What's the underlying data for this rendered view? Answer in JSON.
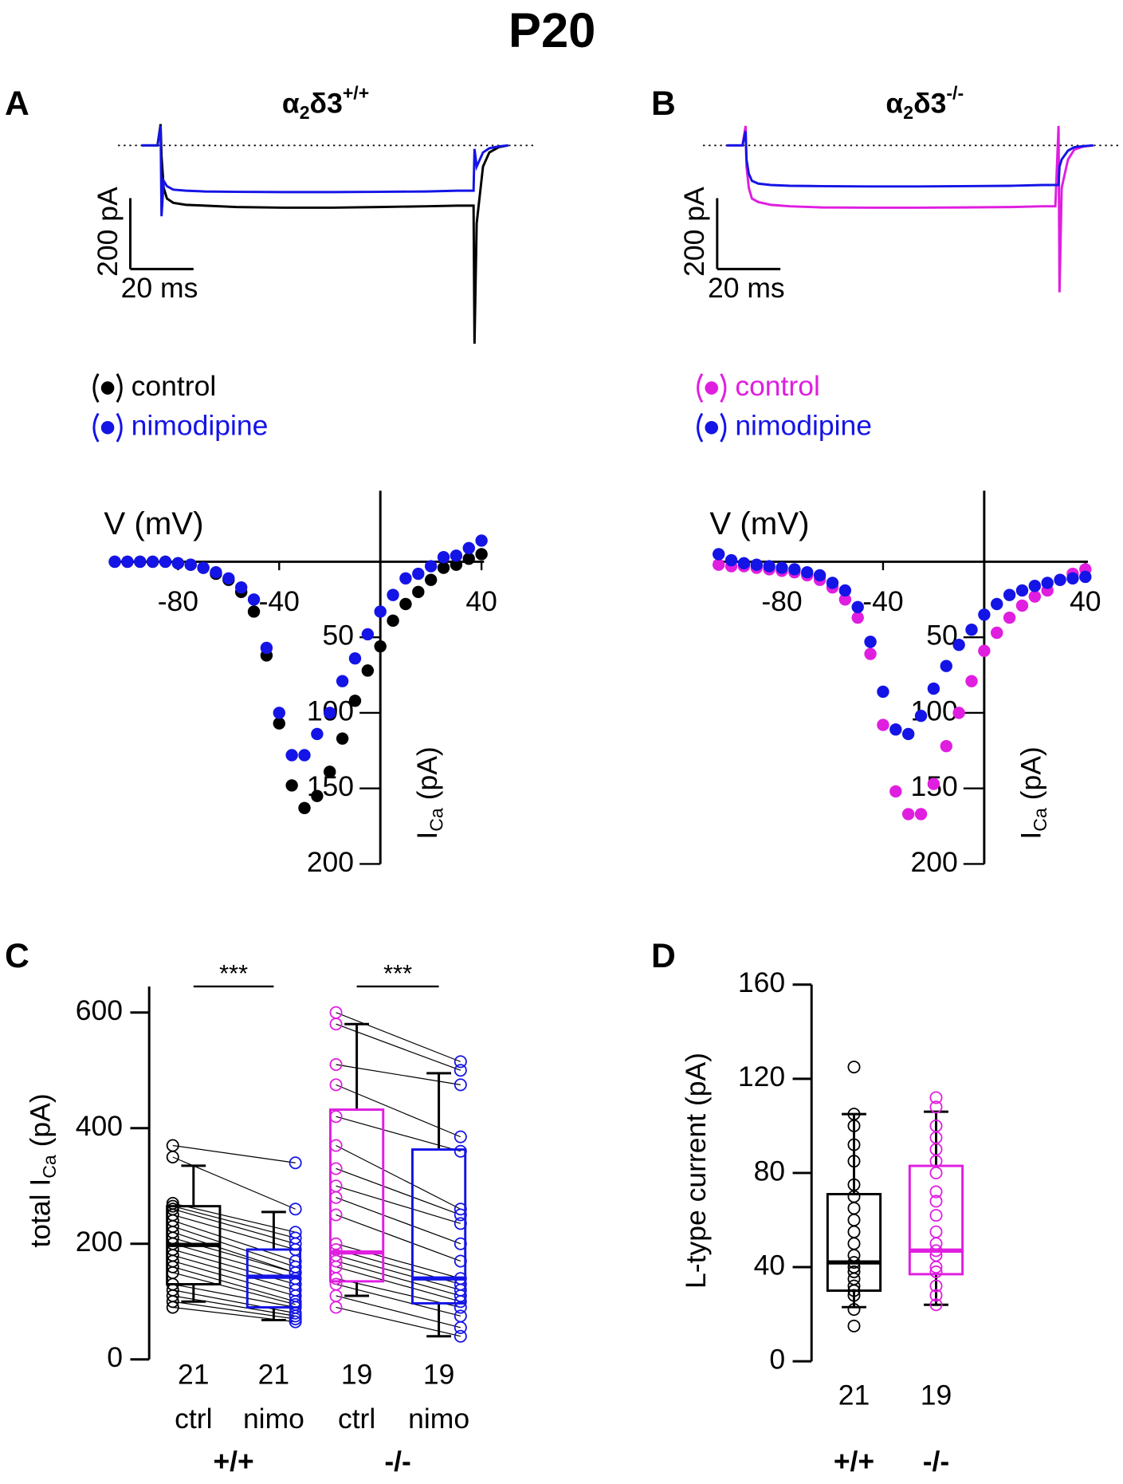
{
  "title": "P20",
  "chart_data": [
    {
      "type": "line",
      "panel": "A",
      "title": [
        "α",
        "2",
        "δ3",
        "+/+"
      ],
      "x": [
        0,
        5,
        6,
        6.3,
        7,
        8,
        10,
        14,
        20,
        30,
        45,
        60,
        75,
        90,
        100,
        104,
        105,
        105.3,
        106,
        108,
        110,
        113,
        116
      ],
      "series": [
        {
          "color": "#000000",
          "values": [
            0,
            0,
            60,
            -30,
            -120,
            -150,
            -162,
            -168,
            -170,
            -174,
            -176,
            -176,
            -174,
            -172,
            -170,
            -170,
            -170,
            -560,
            -220,
            -60,
            -20,
            -5,
            0
          ]
        },
        {
          "color": "#1414e6",
          "values": [
            0,
            0,
            55,
            -200,
            -100,
            -115,
            -125,
            -128,
            -130,
            -131,
            -132,
            -132,
            -131,
            -130,
            -128,
            -128,
            -128,
            -10,
            -60,
            -20,
            -8,
            -3,
            0
          ]
        }
      ],
      "xlim": [
        0,
        116
      ],
      "ylim": [
        -565,
        60
      ],
      "scalebar": {
        "x": {
          "value": 20,
          "label": "20 ms"
        },
        "y": {
          "value": 200,
          "label": "200 pA"
        }
      }
    },
    {
      "type": "line",
      "panel": "B",
      "title": [
        "α",
        "2",
        "δ3",
        "-/-"
      ],
      "x": [
        0,
        5,
        6,
        6.3,
        7,
        8,
        10,
        14,
        20,
        30,
        45,
        60,
        75,
        90,
        100,
        104,
        105,
        105.3,
        106,
        108,
        110,
        113,
        116
      ],
      "series": [
        {
          "color": "#e01ee0",
          "values": [
            0,
            0,
            55,
            -60,
            -120,
            -150,
            -160,
            -168,
            -172,
            -175,
            -176,
            -176,
            -175,
            -174,
            -172,
            -172,
            55,
            -415,
            -120,
            -40,
            -12,
            -3,
            0
          ]
        },
        {
          "color": "#1414e6",
          "values": [
            0,
            0,
            40,
            -40,
            -80,
            -100,
            -108,
            -112,
            -114,
            -115,
            -116,
            -116,
            -115,
            -114,
            -112,
            -112,
            -112,
            -60,
            -40,
            -15,
            -5,
            -2,
            0
          ]
        }
      ],
      "xlim": [
        0,
        116
      ],
      "ylim": [
        -565,
        60
      ],
      "scalebar": {
        "x": {
          "value": 20,
          "label": "20 ms"
        },
        "y": {
          "value": 200,
          "label": "200 pA"
        }
      }
    },
    {
      "type": "scatter",
      "xlabel": "V (mV)",
      "ylabel": [
        "I",
        "Ca",
        " (pA)"
      ],
      "x": [
        -105,
        -100,
        -95,
        -90,
        -85,
        -80,
        -75,
        -70,
        -65,
        -60,
        -55,
        -50,
        -45,
        -40,
        -35,
        -30,
        -25,
        -20,
        -15,
        -10,
        -5,
        0,
        5,
        10,
        15,
        20,
        25,
        30,
        35,
        40
      ],
      "series": [
        {
          "name": "control",
          "color": "#000000",
          "values": [
            0,
            0,
            0,
            0,
            0,
            1,
            2,
            4,
            8,
            12,
            20,
            33,
            62,
            107,
            148,
            163,
            155,
            139,
            117,
            92,
            72,
            56,
            39,
            28,
            20,
            12,
            4,
            2,
            -2,
            -5
          ]
        },
        {
          "name": "nimodipine",
          "color": "#1414e6",
          "values": [
            0,
            0,
            0,
            0,
            0,
            1,
            2,
            4,
            7,
            11,
            17,
            25,
            57,
            100,
            128,
            128,
            114,
            100,
            79,
            64,
            48,
            33,
            22,
            11,
            8,
            3,
            -3,
            -4,
            -9,
            -14
          ]
        }
      ],
      "xlim": [
        -107,
        41
      ],
      "ylim": [
        -47,
        200
      ],
      "invert_y": true,
      "xticks": [
        -80,
        -40,
        40
      ],
      "yticks": [
        50,
        100,
        150,
        200
      ]
    },
    {
      "type": "scatter",
      "xlabel": "V (mV)",
      "ylabel": [
        "I",
        "Ca",
        " (pA)"
      ],
      "x": [
        -105,
        -100,
        -95,
        -90,
        -85,
        -80,
        -75,
        -70,
        -65,
        -60,
        -55,
        -50,
        -45,
        -40,
        -35,
        -30,
        -25,
        -20,
        -15,
        -10,
        -5,
        0,
        5,
        10,
        15,
        20,
        25,
        30,
        35,
        40
      ],
      "series": [
        {
          "name": "control",
          "color": "#e01ee0",
          "values": [
            2,
            3,
            3,
            4,
            5,
            6,
            7,
            9,
            12,
            17,
            25,
            37,
            61,
            108,
            152,
            167,
            167,
            147,
            122,
            100,
            79,
            59,
            47,
            37,
            29,
            23,
            19,
            12,
            8,
            5
          ]
        },
        {
          "name": "nimodipine",
          "color": "#1414e6",
          "values": [
            -5,
            -1,
            1,
            2,
            3,
            4,
            5,
            7,
            9,
            14,
            19,
            30,
            53,
            86,
            111,
            114,
            102,
            84,
            69,
            55,
            45,
            35,
            28,
            22,
            19,
            16,
            14,
            12,
            11,
            10
          ]
        }
      ],
      "xlim": [
        -107,
        41
      ],
      "ylim": [
        -47,
        200
      ],
      "invert_y": true,
      "xticks": [
        -80,
        -40,
        40
      ],
      "yticks": [
        50,
        100,
        150,
        200
      ]
    },
    {
      "type": "box",
      "panel": "C",
      "ylabel": [
        "total I",
        "Ca",
        " (pA)"
      ],
      "ylim": [
        0,
        645
      ],
      "yticks": [
        0,
        200,
        400,
        600
      ],
      "groups": [
        {
          "n": 21,
          "label": "ctrl",
          "color": "#000000",
          "points": [
            370,
            350,
            270,
            265,
            260,
            250,
            240,
            230,
            220,
            210,
            200,
            190,
            180,
            170,
            160,
            150,
            130,
            120,
            110,
            100,
            90
          ],
          "whisker_low": 100,
          "q1": 130,
          "median": 198,
          "q3": 265,
          "whisker_high": 335
        },
        {
          "n": 21,
          "label": "nimo",
          "color": "#1414e6",
          "points": [
            340,
            260,
            220,
            210,
            200,
            190,
            170,
            160,
            150,
            150,
            140,
            130,
            120,
            110,
            100,
            95,
            90,
            80,
            75,
            70,
            65
          ],
          "whisker_low": 68,
          "q1": 90,
          "median": 143,
          "q3": 190,
          "whisker_high": 255
        },
        {
          "n": 19,
          "label": "ctrl",
          "color": "#e01ee0",
          "points": [
            600,
            580,
            510,
            475,
            420,
            370,
            330,
            300,
            280,
            250,
            200,
            190,
            180,
            170,
            160,
            140,
            130,
            110,
            90
          ],
          "whisker_low": 110,
          "q1": 135,
          "median": 185,
          "q3": 432,
          "whisker_high": 580
        },
        {
          "n": 19,
          "label": "nimo",
          "color": "#1414e6",
          "points": [
            515,
            500,
            475,
            385,
            360,
            260,
            250,
            235,
            200,
            170,
            140,
            130,
            120,
            110,
            100,
            90,
            75,
            55,
            40
          ],
          "whisker_low": 40,
          "q1": 97,
          "median": 140,
          "q3": 363,
          "whisker_high": 495
        }
      ],
      "pairs": [
        [
          0,
          1
        ],
        [
          2,
          3
        ]
      ],
      "genotypes": [
        "+/+",
        "-/-"
      ],
      "significance": [
        "***",
        "***"
      ]
    },
    {
      "type": "box",
      "panel": "D",
      "ylabel": [
        "L-type current (pA)"
      ],
      "ylim": [
        0,
        160
      ],
      "yticks": [
        0,
        40,
        80,
        120,
        160
      ],
      "groups": [
        {
          "n": 21,
          "label": "+/+",
          "color": "#000000",
          "points": [
            125,
            105,
            100,
            92,
            85,
            75,
            70,
            65,
            60,
            55,
            50,
            45,
            42,
            40,
            38,
            35,
            32,
            30,
            28,
            22,
            15
          ],
          "whisker_low": 23,
          "q1": 30,
          "median": 42,
          "q3": 71,
          "whisker_high": 105
        },
        {
          "n": 19,
          "label": "-/-",
          "color": "#e01ee0",
          "points": [
            112,
            108,
            100,
            95,
            90,
            85,
            80,
            72,
            68,
            62,
            55,
            50,
            47,
            45,
            40,
            38,
            32,
            28,
            24
          ],
          "whisker_low": 24,
          "q1": 37,
          "median": 47,
          "q3": 83,
          "whisker_high": 106
        }
      ]
    }
  ]
}
